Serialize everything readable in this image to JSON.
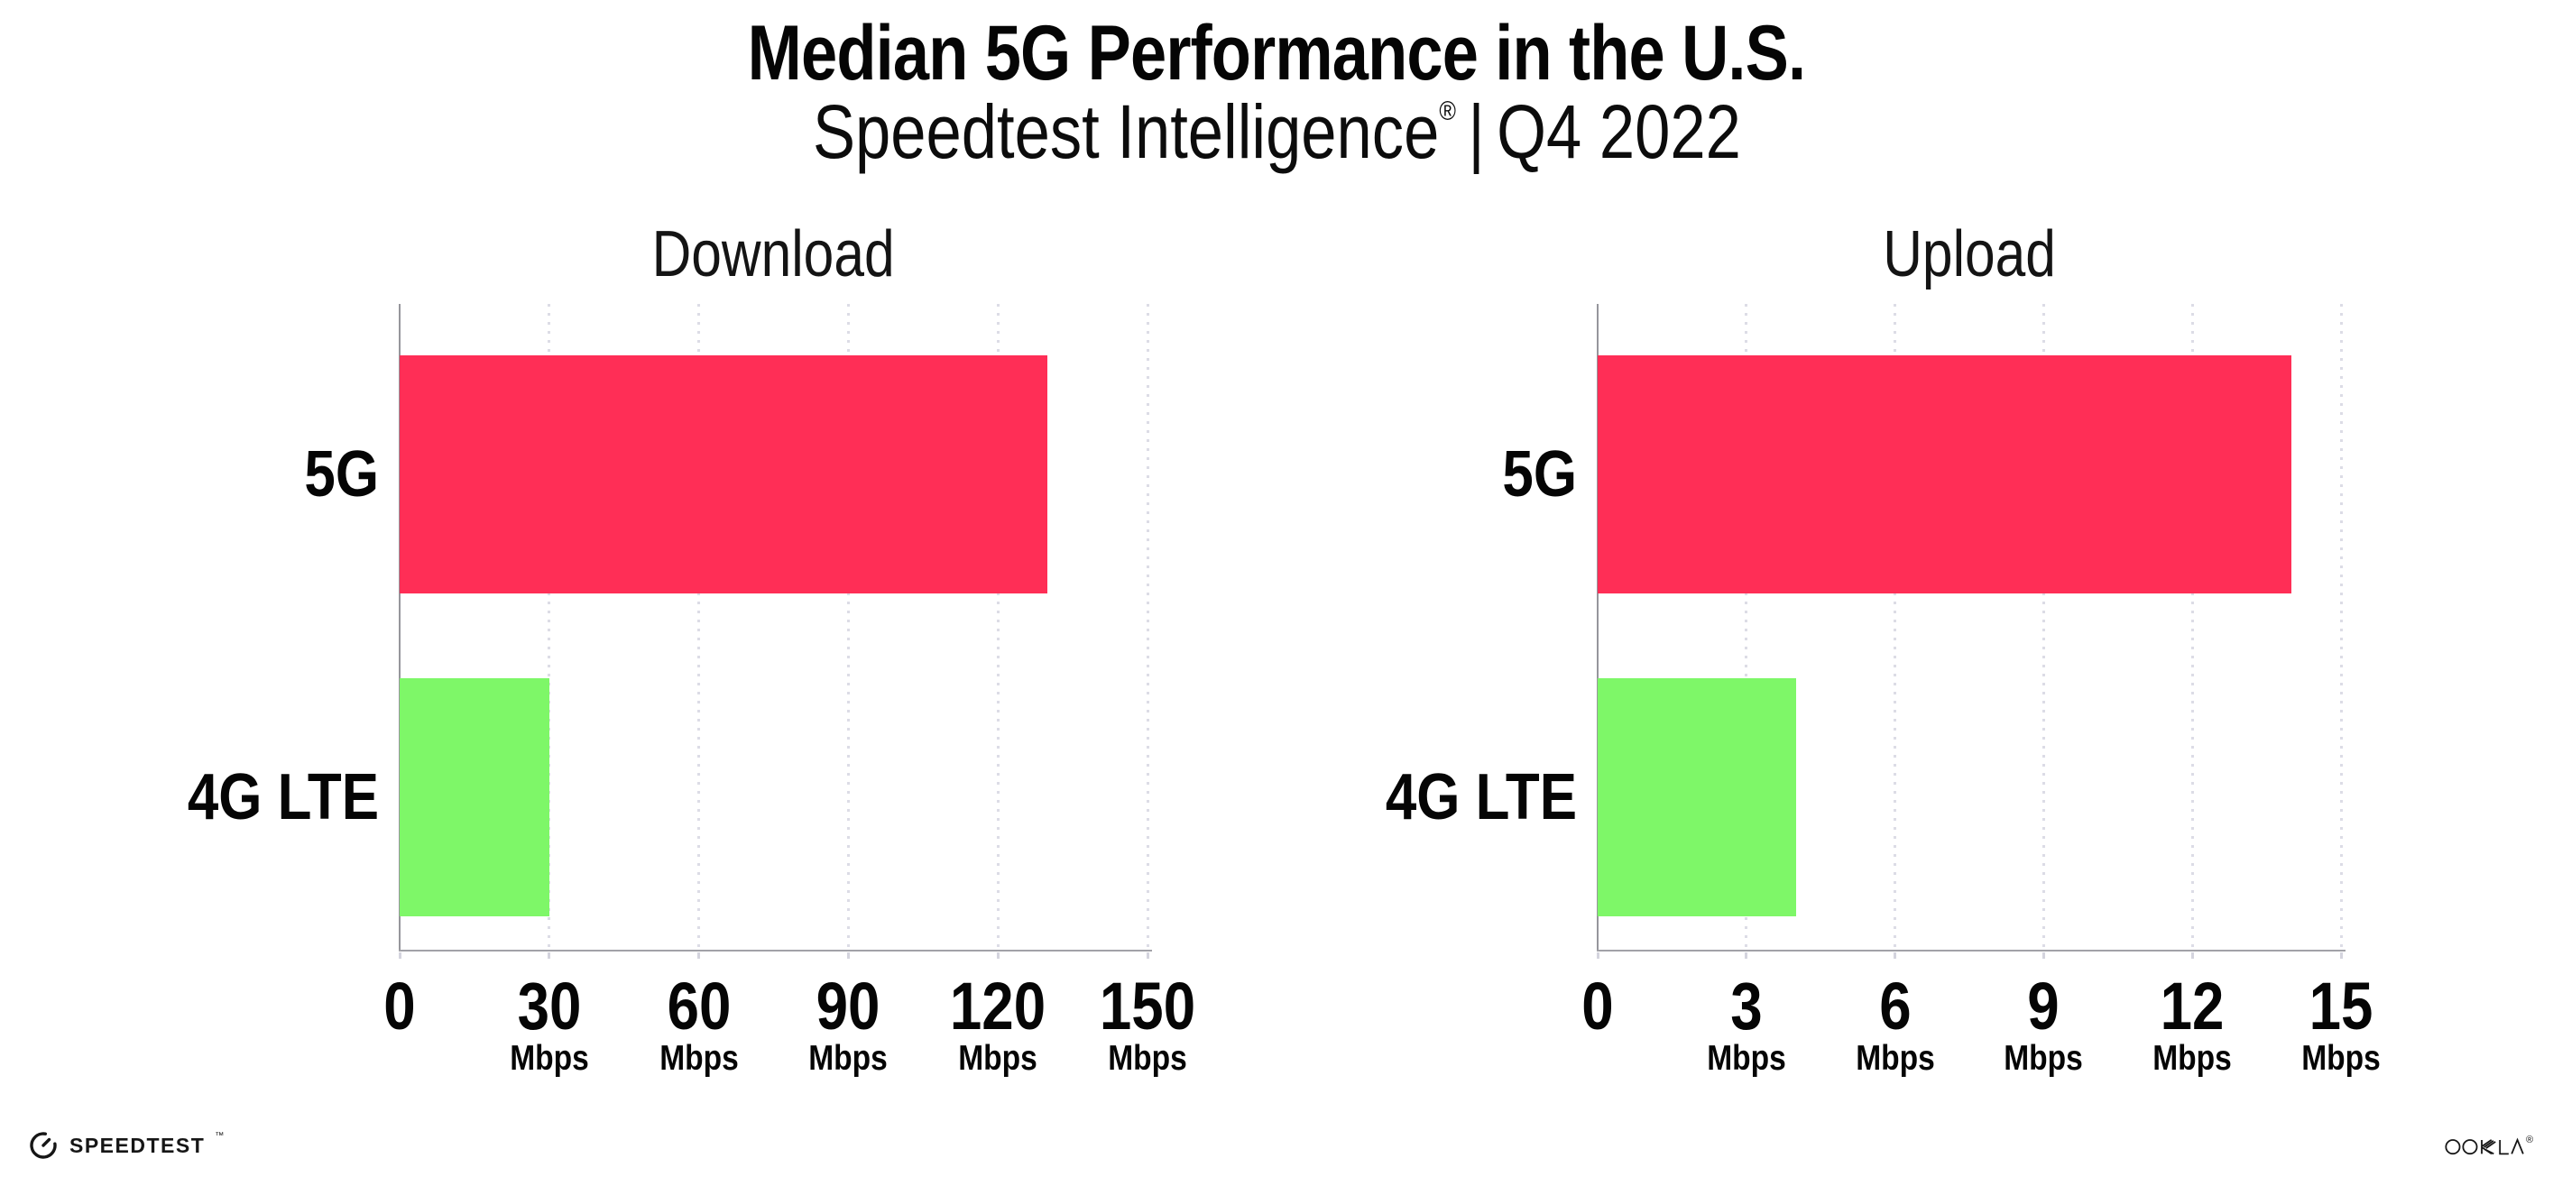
{
  "header": {
    "title": "Median 5G Performance in the U.S.",
    "subtitle_brand": "Speedtest Intelligence",
    "subtitle_reg": "®",
    "subtitle_separator": "|",
    "subtitle_period": "Q4 2022"
  },
  "chart_data": [
    {
      "type": "bar",
      "orientation": "horizontal",
      "title": "Download",
      "categories": [
        "5G",
        "4G LTE"
      ],
      "values": [
        130,
        30
      ],
      "unit": "Mbps",
      "xlim": [
        0,
        150
      ],
      "xticks": [
        0,
        30,
        60,
        90,
        120,
        150
      ],
      "bar_colors": [
        "#FF2E56",
        "#7EF768"
      ],
      "grid": "dotted-vertical",
      "legend": "none"
    },
    {
      "type": "bar",
      "orientation": "horizontal",
      "title": "Upload",
      "categories": [
        "5G",
        "4G LTE"
      ],
      "values": [
        14,
        4
      ],
      "unit": "Mbps",
      "xlim": [
        0,
        15
      ],
      "xticks": [
        0,
        3,
        6,
        9,
        12,
        15
      ],
      "bar_colors": [
        "#FF2E56",
        "#7EF768"
      ],
      "grid": "dotted-vertical",
      "legend": "none"
    }
  ],
  "footer": {
    "speedtest_label": "SPEEDTEST",
    "speedtest_tm": "™",
    "ookla_label": "OOKLA",
    "ookla_reg": "®"
  },
  "colors": {
    "bar_5g": "#FF2E56",
    "bar_4g_lte": "#7EF768",
    "axis": "#a2a2a8",
    "grid": "#dcdce6",
    "text": "#050505"
  }
}
